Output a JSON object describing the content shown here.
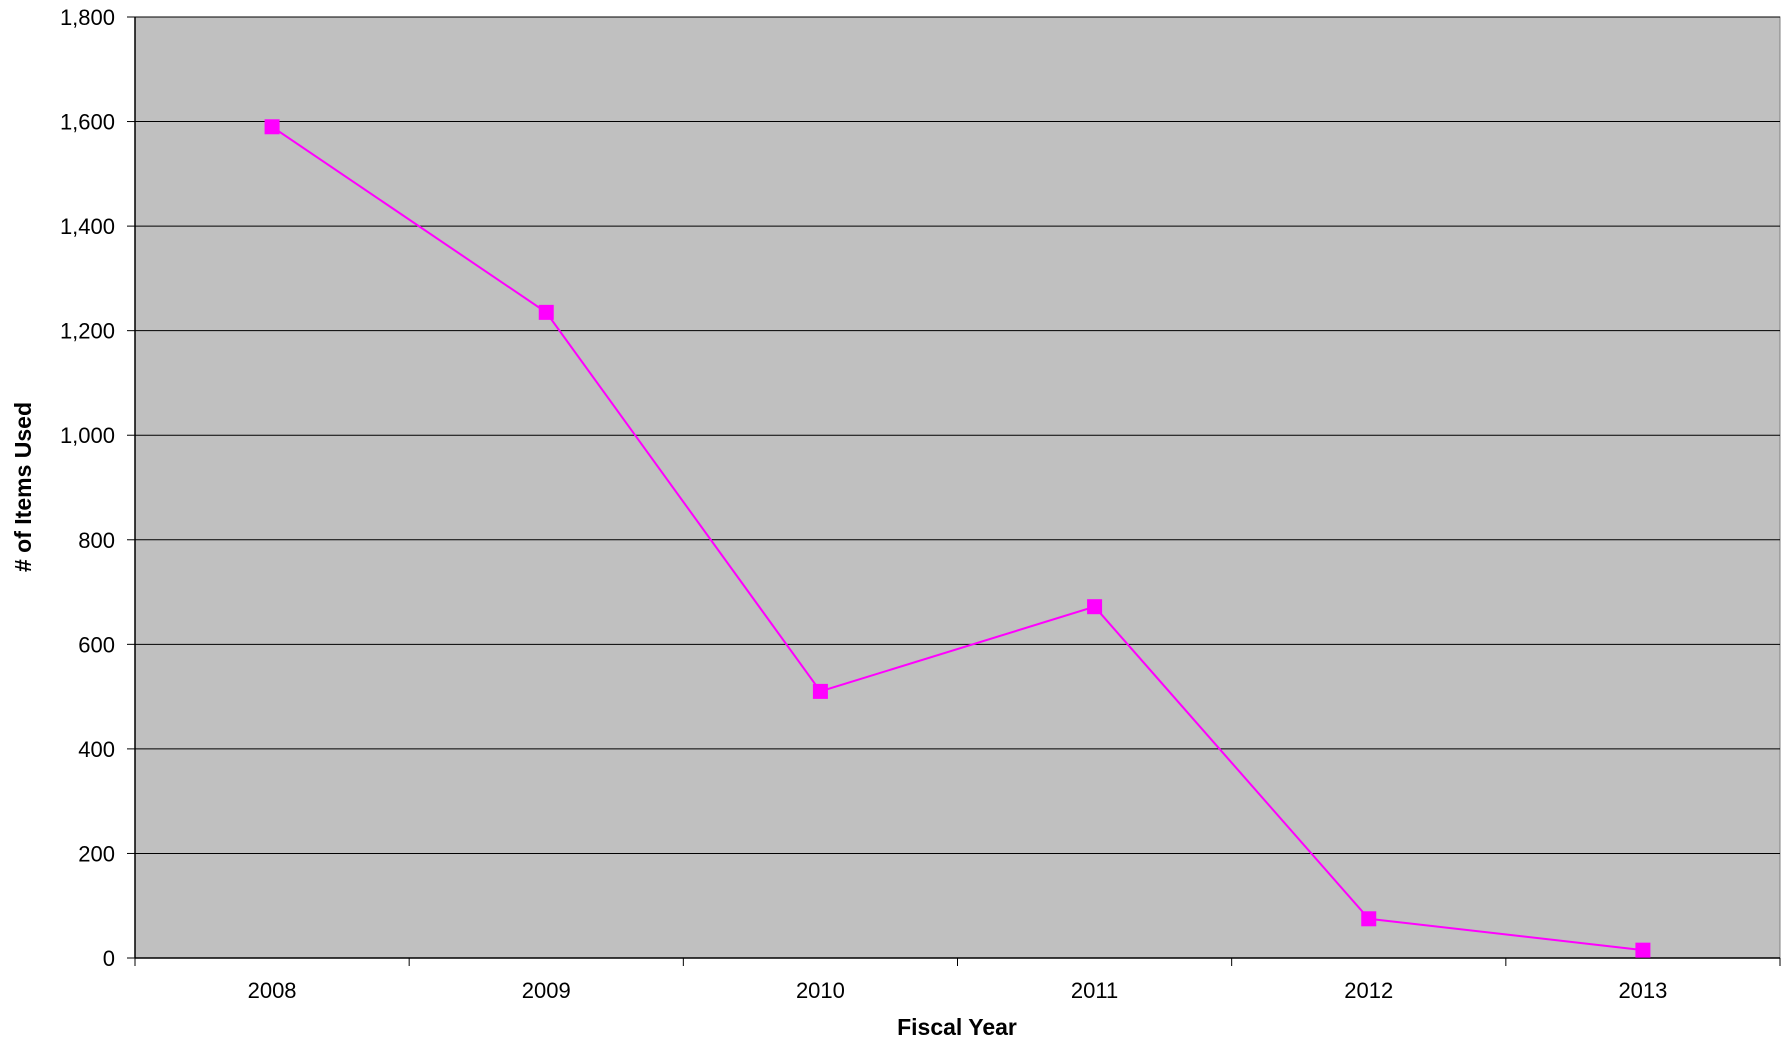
{
  "chart_data": {
    "type": "line",
    "title": "",
    "xlabel": "Fiscal Year",
    "ylabel": "# of Items Used",
    "categories": [
      "2008",
      "2009",
      "2010",
      "2011",
      "2012",
      "2013"
    ],
    "series": [
      {
        "values": [
          1590,
          1235,
          510,
          672,
          75,
          15
        ]
      }
    ],
    "ylim": [
      0,
      1800
    ],
    "yticks": [
      0,
      200,
      400,
      600,
      800,
      1000,
      1200,
      1400,
      1600,
      1800
    ],
    "ytick_labels": [
      "0",
      "200",
      "400",
      "600",
      "800",
      "1,000",
      "1,200",
      "1,400",
      "1,600",
      "1,800"
    ],
    "grid": true,
    "legend": "none",
    "colors": {
      "plot_background": "#c0c0c0",
      "gridline": "#000000",
      "series": "#ff00ff"
    }
  }
}
